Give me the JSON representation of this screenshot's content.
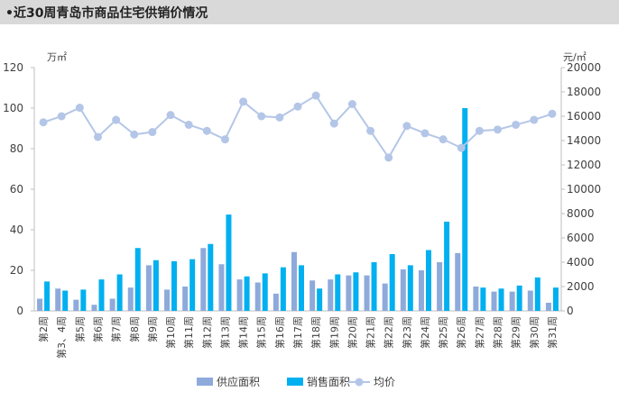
{
  "header": {
    "title": "•近30周青岛市商品住宅供销价情况"
  },
  "colors": {
    "supply": "#8eaadb",
    "sales": "#00b0f0",
    "price": "#b4c6e7",
    "axis": "#bfbfbf"
  },
  "chart_data": {
    "type": "bar",
    "title": "",
    "categories": [
      "第2周",
      "第3、4周",
      "第5周",
      "第6周",
      "第7周",
      "第8周",
      "第9周",
      "第10周",
      "第11周",
      "第12周",
      "第13周",
      "第14周",
      "第15周",
      "第16周",
      "第17周",
      "第18周",
      "第19周",
      "第20周",
      "第21周",
      "第22周",
      "第23周",
      "第24周",
      "第25周",
      "第26周",
      "第27周",
      "第28周",
      "第29周",
      "第30周",
      "第31周"
    ],
    "y_left": {
      "unit": "万㎡",
      "ylim": [
        0,
        120
      ],
      "ticks": [
        0,
        20,
        40,
        60,
        80,
        100,
        120
      ]
    },
    "y_right": {
      "unit": "元/㎡",
      "ylim": [
        0,
        20000
      ],
      "ticks": [
        0,
        2000,
        4000,
        6000,
        8000,
        10000,
        12000,
        14000,
        16000,
        18000,
        20000
      ]
    },
    "series": [
      {
        "name": "供应面积",
        "type": "bar",
        "axis": "left",
        "values": [
          6,
          11,
          5.5,
          3,
          6,
          11.5,
          22.5,
          10.5,
          12,
          31,
          23,
          15.5,
          14,
          8.5,
          29,
          15,
          15.5,
          17.5,
          17.5,
          13.5,
          20.5,
          20,
          24,
          28.5,
          12,
          9.5,
          9.5,
          10,
          4
        ]
      },
      {
        "name": "销售面积",
        "type": "bar",
        "axis": "left",
        "values": [
          14.5,
          10,
          10.5,
          15.5,
          18,
          31,
          25,
          24.5,
          25.5,
          33,
          47.5,
          17,
          18.5,
          21.5,
          22.5,
          11,
          18,
          19,
          24,
          28,
          22.5,
          30,
          44,
          100,
          11.5,
          11,
          12.5,
          16.5,
          11.5
        ]
      },
      {
        "name": "均价",
        "type": "line",
        "axis": "right",
        "values": [
          15500,
          16000,
          16700,
          14300,
          15700,
          14500,
          14700,
          16100,
          15300,
          14800,
          14100,
          17200,
          16000,
          15900,
          16800,
          17700,
          15400,
          17000,
          14800,
          12600,
          15200,
          14600,
          14100,
          13400,
          14800,
          14900,
          15300,
          15700,
          16200
        ]
      }
    ],
    "legend": {
      "placement": "bottom"
    },
    "grid": false
  }
}
